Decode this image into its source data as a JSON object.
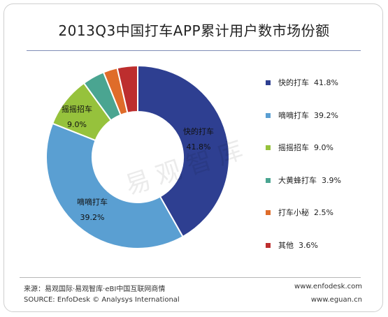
{
  "title": "2013Q3中国打车APP累计用户数市场份额",
  "chart_data": {
    "type": "pie",
    "style": "donut",
    "title": "2013Q3中国打车APP累计用户数市场份额",
    "unit": "%",
    "legend_position": "right",
    "slices": [
      {
        "label": "快的打车",
        "value": 41.8,
        "display": "41.8%",
        "color": "#2e3f91"
      },
      {
        "label": "嘀嘀打车",
        "value": 39.2,
        "display": "39.2%",
        "color": "#5a9fd2"
      },
      {
        "label": "摇摇招车",
        "value": 9.0,
        "display": "9.0%",
        "color": "#96c23c"
      },
      {
        "label": "大黄蜂打车",
        "value": 3.9,
        "display": "3.9%",
        "color": "#4aa591"
      },
      {
        "label": "打车小秘",
        "value": 2.5,
        "display": "2.5%",
        "color": "#df6c2a"
      },
      {
        "label": "其他",
        "value": 3.6,
        "display": "3.6%",
        "color": "#bd2e2e"
      }
    ],
    "data_labels": [
      {
        "label": "快的打车",
        "value": "41.8%"
      },
      {
        "label": "嘀嘀打车",
        "value": "39.2%"
      },
      {
        "label": "摇摇招车",
        "value": "9.0%"
      }
    ]
  },
  "legend": [
    {
      "label": "快的打车",
      "value": "41.8%"
    },
    {
      "label": "嘀嘀打车",
      "value": "39.2%"
    },
    {
      "label": "摇摇招车",
      "value": "9.0%"
    },
    {
      "label": "大黄蜂打车",
      "value": "3.9%"
    },
    {
      "label": "打车小秘",
      "value": "2.5%"
    },
    {
      "label": "其他",
      "value": "3.6%"
    }
  ],
  "watermark": "易观智库",
  "footer": {
    "source_cn": "来源：易观国际·易观智库·eBI中国互联网商情",
    "source_en": "SOURCE: EnfoDesk © Analysys International",
    "url1": "www.enfodesk.com",
    "url2": "www.eguan.cn"
  }
}
